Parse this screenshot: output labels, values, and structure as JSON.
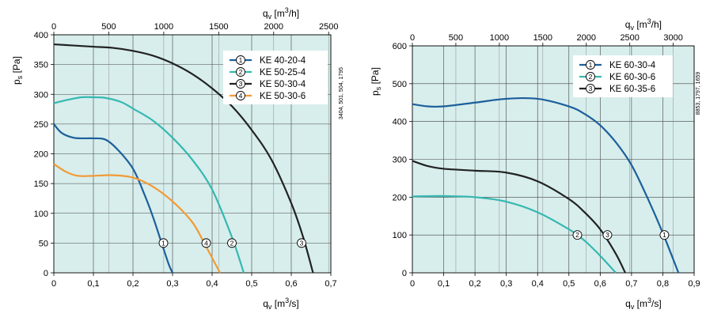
{
  "chart_data": [
    {
      "type": "line",
      "grid": true,
      "legend": "top-right",
      "side_code": "3404, 501, 504, 1795",
      "xlabel": {
        "main": "q",
        "sub": "v",
        "unit_pre": " [m",
        "unit_sup": "3",
        "unit_post": "/s]"
      },
      "x2label": {
        "main": "q",
        "sub": "v",
        "unit_pre": " [m",
        "unit_sup": "3",
        "unit_post": "/h]"
      },
      "ylabel": {
        "main": "p",
        "sub": "s",
        "unit_pre": " [Pa]",
        "unit_sup": "",
        "unit_post": ""
      },
      "xlim": [
        0,
        0.7
      ],
      "ylim": [
        0,
        400
      ],
      "x2lim": [
        0,
        2520
      ],
      "xticks": [
        "0",
        "0,1",
        "0,2",
        "0,3",
        "0,4",
        "0,5",
        "0,6",
        "0,7"
      ],
      "xtick_values": [
        0,
        0.1,
        0.2,
        0.3,
        0.4,
        0.5,
        0.6,
        0.7
      ],
      "x2ticks": [
        "0",
        "500",
        "1000",
        "1500",
        "2000",
        "2500"
      ],
      "x2tick_values": [
        0,
        500,
        1000,
        1500,
        2000,
        2500
      ],
      "yticks": [
        "0",
        "50",
        "100",
        "150",
        "200",
        "250",
        "300",
        "350",
        "400"
      ],
      "ytick_values": [
        0,
        50,
        100,
        150,
        200,
        250,
        300,
        350,
        400
      ],
      "series": [
        {
          "name": "KE 40-20-4",
          "marker": "1",
          "color": "#1d5f9b",
          "x": [
            0,
            0.02,
            0.05,
            0.08,
            0.1,
            0.13,
            0.16,
            0.2,
            0.23,
            0.25,
            0.27,
            0.29,
            0.3
          ],
          "y": [
            250,
            235,
            227,
            226,
            226,
            224,
            208,
            175,
            130,
            95,
            55,
            15,
            0
          ],
          "marker_point": [
            0.277,
            50
          ]
        },
        {
          "name": "KE 50-25-4",
          "marker": "2",
          "color": "#35b8b1",
          "x": [
            0,
            0.03,
            0.07,
            0.1,
            0.13,
            0.17,
            0.2,
            0.25,
            0.3,
            0.35,
            0.4,
            0.45,
            0.48
          ],
          "y": [
            285,
            290,
            295,
            295,
            294,
            287,
            276,
            256,
            227,
            190,
            140,
            60,
            0
          ],
          "marker_point": [
            0.45,
            50
          ]
        },
        {
          "name": "KE 50-30-4",
          "marker": "3",
          "color": "#222222",
          "x": [
            0,
            0.05,
            0.1,
            0.15,
            0.2,
            0.25,
            0.3,
            0.35,
            0.4,
            0.45,
            0.5,
            0.55,
            0.6,
            0.63,
            0.655
          ],
          "y": [
            384,
            382,
            380,
            378,
            373,
            365,
            352,
            334,
            310,
            280,
            240,
            190,
            117,
            60,
            0
          ],
          "marker_point": [
            0.626,
            50
          ]
        },
        {
          "name": "KE 50-30-6",
          "marker": "4",
          "color": "#f29a35",
          "x": [
            0,
            0.03,
            0.06,
            0.1,
            0.15,
            0.2,
            0.25,
            0.3,
            0.35,
            0.38,
            0.42
          ],
          "y": [
            183,
            170,
            163,
            163,
            164,
            160,
            145,
            120,
            85,
            50,
            0
          ],
          "marker_point": [
            0.385,
            50
          ]
        }
      ]
    },
    {
      "type": "line",
      "grid": true,
      "legend": "top-right",
      "side_code": "8853, 1797, 1659",
      "xlabel": {
        "main": "q",
        "sub": "v",
        "unit_pre": " [m",
        "unit_sup": "3",
        "unit_post": "/s]"
      },
      "x2label": {
        "main": "q",
        "sub": "v",
        "unit_pre": " [m",
        "unit_sup": "3",
        "unit_post": "/h]"
      },
      "ylabel": {
        "main": "p",
        "sub": "s",
        "unit_pre": " [Pa]",
        "unit_sup": "",
        "unit_post": ""
      },
      "xlim": [
        0,
        0.9
      ],
      "ylim": [
        0,
        600
      ],
      "x2lim": [
        0,
        3240
      ],
      "xticks": [
        "0",
        "0,1",
        "0,2",
        "0,3",
        "0,4",
        "0,5",
        "0,6",
        "0,7",
        "0,8",
        "0,9"
      ],
      "xtick_values": [
        0,
        0.1,
        0.2,
        0.3,
        0.4,
        0.5,
        0.6,
        0.7,
        0.8,
        0.9
      ],
      "x2ticks": [
        "0",
        "500",
        "1000",
        "1500",
        "2000",
        "2500",
        "3000"
      ],
      "x2tick_values": [
        0,
        500,
        1000,
        1500,
        2000,
        2500,
        3000
      ],
      "yticks": [
        "0",
        "100",
        "200",
        "300",
        "400",
        "500",
        "600"
      ],
      "ytick_values": [
        0,
        100,
        200,
        300,
        400,
        500,
        600
      ],
      "series": [
        {
          "name": "KE 60-30-4",
          "marker": "1",
          "color": "#1d5f9b",
          "x": [
            0,
            0.05,
            0.1,
            0.2,
            0.3,
            0.4,
            0.5,
            0.55,
            0.6,
            0.65,
            0.7,
            0.75,
            0.8,
            0.85
          ],
          "y": [
            446,
            440,
            440,
            450,
            460,
            460,
            440,
            420,
            390,
            345,
            285,
            200,
            105,
            0
          ],
          "marker_point": [
            0.805,
            100
          ]
        },
        {
          "name": "KE 60-30-6",
          "marker": "2",
          "color": "#35b8b1",
          "x": [
            0,
            0.1,
            0.2,
            0.3,
            0.4,
            0.5,
            0.55,
            0.6,
            0.65
          ],
          "y": [
            202,
            203,
            200,
            188,
            160,
            115,
            85,
            45,
            0
          ],
          "marker_point": [
            0.527,
            100
          ]
        },
        {
          "name": "KE 60-35-6",
          "marker": "3",
          "color": "#222222",
          "x": [
            0,
            0.05,
            0.1,
            0.2,
            0.3,
            0.4,
            0.5,
            0.55,
            0.6,
            0.65,
            0.68
          ],
          "y": [
            296,
            282,
            275,
            270,
            265,
            242,
            195,
            160,
            115,
            50,
            0
          ],
          "marker_point": [
            0.623,
            100
          ]
        }
      ]
    }
  ]
}
